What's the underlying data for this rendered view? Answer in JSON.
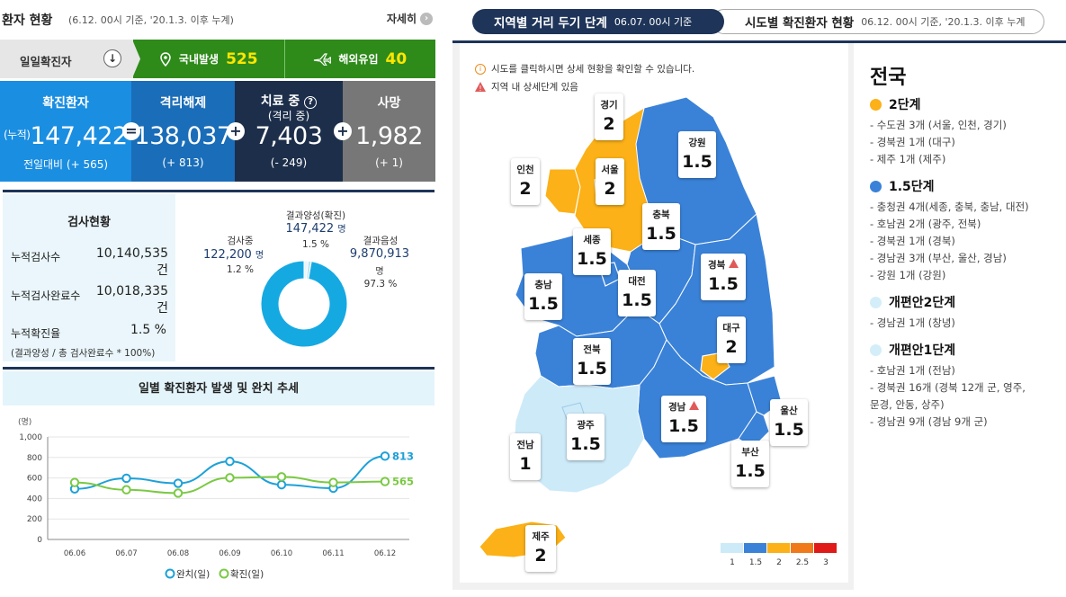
{
  "header": {
    "title": "환자 현황",
    "subtitle": "(6.12. 00시 기준, '20.1.3. 이후 누계)",
    "detail": "자세히"
  },
  "daily": {
    "label": "일일확진자",
    "domestic_label": "국내발생",
    "domestic_value": "525",
    "overseas_label": "해외유입",
    "overseas_value": "40"
  },
  "stats": [
    {
      "title": "확진환자",
      "prefix": "(누적)",
      "value": "147,422",
      "sub": "전일대비 (+ 565)",
      "color": "#1a8ee1"
    },
    {
      "title": "격리해제",
      "value": "138,037",
      "sub": "(+ 813)",
      "color": "#1a6db8"
    },
    {
      "title": "치료 중",
      "title2": "(격리 중)",
      "value": "7,403",
      "sub": "(- 249)",
      "color": "#1c2e4a"
    },
    {
      "title": "사망",
      "value": "1,982",
      "sub": "(+ 1)",
      "color": "#777777"
    }
  ],
  "ops": {
    "eq": "=",
    "plus": "+"
  },
  "tests": {
    "title": "검사현황",
    "rows": [
      {
        "label": "누적검사수",
        "value": "10,140,535",
        "unit": "건"
      },
      {
        "label": "누적검사완료수",
        "value": "10,018,335",
        "unit": "건"
      },
      {
        "label": "누적확진율",
        "value": "1.5 %"
      }
    ],
    "note": "(결과양성 / 총 검사완료수 * 100%)",
    "donut": {
      "positive": {
        "label": "결과양성(확진)",
        "value": "147,422",
        "unit": "명",
        "pct": "1.5 %"
      },
      "testing": {
        "label": "검사중",
        "value": "122,200",
        "unit": "명",
        "pct": "1.2 %"
      },
      "negative": {
        "label": "결과음성",
        "value": "9,870,913",
        "unit": "명",
        "pct": "97.3 %"
      },
      "fractions": {
        "negative": 97.3,
        "positive": 1.5,
        "testing": 1.2
      }
    }
  },
  "chart_data": {
    "type": "line",
    "title": "일별 확진환자 발생 및 완치 추세",
    "ylabel": "(명)",
    "ylim": [
      0,
      1000
    ],
    "yticks": [
      "0",
      "200",
      "400",
      "600",
      "800",
      "1,000"
    ],
    "categories": [
      "06.06",
      "06.07",
      "06.08",
      "06.09",
      "06.10",
      "06.11",
      "06.12"
    ],
    "series": [
      {
        "name": "완치(일)",
        "values": [
          493,
          597,
          548,
          762,
          534,
          500,
          813
        ],
        "color": "#1da1d8"
      },
      {
        "name": "확진(일)",
        "values": [
          556,
          485,
          452,
          602,
          611,
          556,
          565
        ],
        "color": "#7ac943"
      }
    ],
    "end_labels": [
      "813",
      "565"
    ]
  },
  "tabs": {
    "active_label": "지역별 거리 두기 단계",
    "active_date": "06.07. 00시 기준",
    "other_label": "시도별 확진환자 현황",
    "other_date": "06.12. 00시 기준, '20.1.3. 이후 누계"
  },
  "map": {
    "notice1": "시도를 클릭하시면 상세 현황을 확인할 수 있습니다.",
    "notice2": "지역 내 상세단계 있음",
    "regions": [
      {
        "name": "경기",
        "level": "2"
      },
      {
        "name": "인천",
        "level": "2"
      },
      {
        "name": "서울",
        "level": "2"
      },
      {
        "name": "강원",
        "level": "1.5"
      },
      {
        "name": "충북",
        "level": "1.5"
      },
      {
        "name": "세종",
        "level": "1.5"
      },
      {
        "name": "경북",
        "level": "1.5"
      },
      {
        "name": "대전",
        "level": "1.5"
      },
      {
        "name": "충남",
        "level": "1.5"
      },
      {
        "name": "대구",
        "level": "2"
      },
      {
        "name": "전북",
        "level": "1.5"
      },
      {
        "name": "경남",
        "level": "1.5"
      },
      {
        "name": "광주",
        "level": "1.5"
      },
      {
        "name": "울산",
        "level": "1.5"
      },
      {
        "name": "전남",
        "level": "1"
      },
      {
        "name": "부산",
        "level": "1.5"
      },
      {
        "name": "제주",
        "level": "2"
      }
    ],
    "scale": [
      {
        "label": "1",
        "color": "#cdeaf9"
      },
      {
        "label": "1.5",
        "color": "#3a82d8"
      },
      {
        "label": "2",
        "color": "#fbb117"
      },
      {
        "label": "2.5",
        "color": "#f07a1a"
      },
      {
        "label": "3",
        "color": "#e01919"
      }
    ],
    "colors": {
      "l1": "#cdeaf9",
      "l15": "#3a82d8",
      "l2": "#fbb117"
    }
  },
  "legend": {
    "title": "전국",
    "groups": [
      {
        "heading": "2단계",
        "color": "#fbb117",
        "items": [
          "- 수도권 3개 (서울, 인천, 경기)",
          "- 경북권 1개 (대구)",
          "- 제주 1개 (제주)"
        ]
      },
      {
        "heading": "1.5단계",
        "color": "#3a82d8",
        "items": [
          "- 충청권 4개(세종, 충북, 충남, 대전)",
          "- 호남권 2개 (광주, 전북)",
          "- 경북권 1개 (경북)",
          "- 경남권 3개 (부산, 울산, 경남)",
          "- 강원 1개 (강원)"
        ]
      },
      {
        "heading": "개편안2단계",
        "color": "#d3eef9",
        "items": [
          "- 경남권 1개 (창녕)"
        ]
      },
      {
        "heading": "개편안1단계",
        "color": "#d3eef9",
        "items": [
          "- 호남권 1개 (전남)",
          "- 경북권 16개 (경북 12개 군, 영주,",
          "문경, 안동, 상주)",
          "- 경남권 9개 (경남 9개 군)"
        ]
      }
    ]
  }
}
